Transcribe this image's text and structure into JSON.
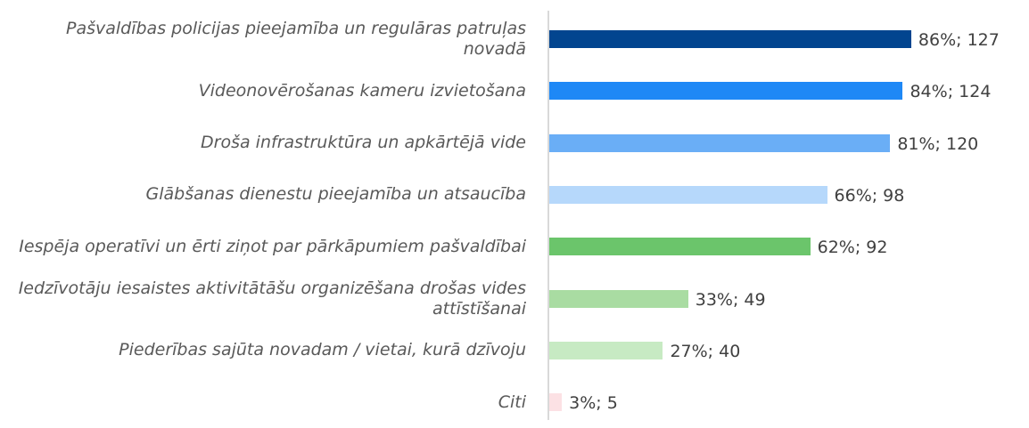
{
  "chart_data": {
    "type": "bar",
    "orientation": "horizontal",
    "categories": [
      "Pašvaldības policijas pieejamība un regulāras patruļas novadā",
      "Videonovērošanas kameru izvietošana",
      "Droša infrastruktūra un apkārtējā vide",
      "Glābšanas dienestu pieejamība un atsaucība",
      "Iespēja operatīvi un ērti ziņot par pārkāpumiem pašvaldībai",
      "Iedzīvotāju iesaistes aktivitātāšu organizēšana drošas vides attīstīšanai",
      "Piederības sajūta novadam / vietai, kurā dzīvoju",
      "Citi"
    ],
    "values": [
      86,
      84,
      81,
      66,
      62,
      33,
      27,
      3
    ],
    "value_labels": [
      "86%; 127",
      "84%; 124",
      "81%; 120",
      "66%; 98",
      "62%; 92",
      "33%; 49",
      "27%; 40",
      "3%; 5"
    ],
    "colors": [
      "#02458f",
      "#1e88f6",
      "#6aaef6",
      "#b6d8fb",
      "#6bc56b",
      "#a9dca2",
      "#c7eac3",
      "#fce1e4"
    ]
  }
}
